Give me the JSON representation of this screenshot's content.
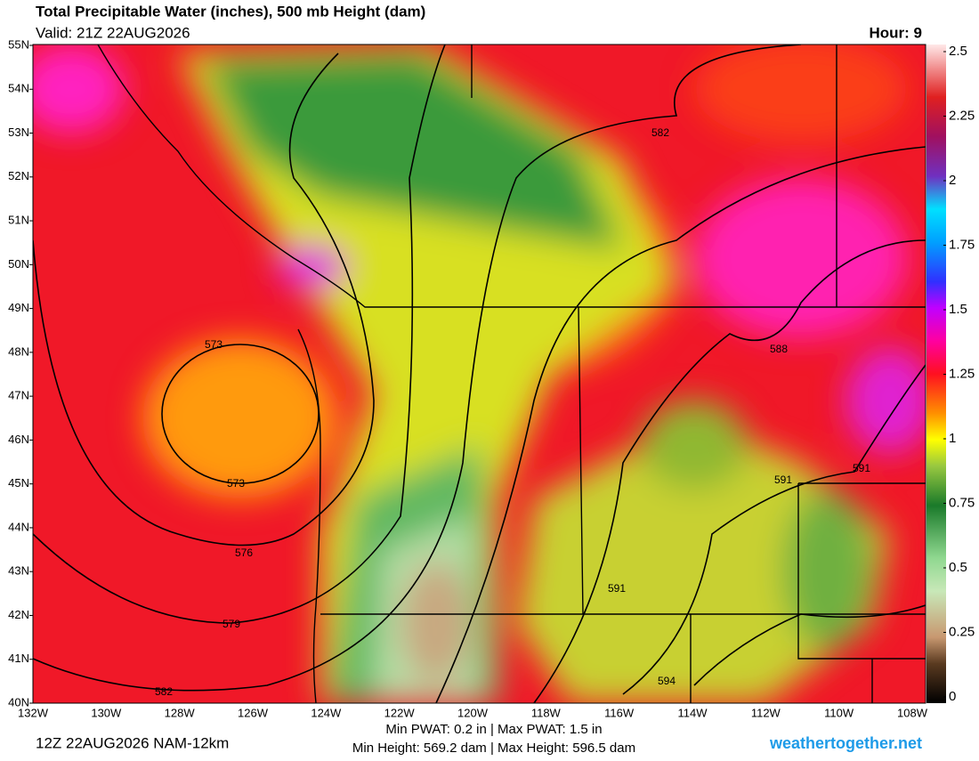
{
  "header": {
    "title": "Total Precipitable Water (inches), 500 mb Height (dam)",
    "valid": "Valid: 21Z 22AUG2026",
    "hour": "Hour: 9"
  },
  "map": {
    "lat_labels": [
      "55N",
      "54N",
      "53N",
      "52N",
      "51N",
      "50N",
      "49N",
      "48N",
      "47N",
      "46N",
      "45N",
      "44N",
      "43N",
      "42N",
      "41N",
      "40N"
    ],
    "lon_labels": [
      "132W",
      "130W",
      "128W",
      "126W",
      "124W",
      "122W",
      "120W",
      "118W",
      "116W",
      "114W",
      "112W",
      "110W",
      "108W"
    ],
    "contour_labels": [
      "573",
      "573",
      "576",
      "579",
      "582",
      "582",
      "588",
      "591",
      "591",
      "591",
      "594"
    ]
  },
  "colorbar": {
    "lim": [
      0,
      2.5
    ],
    "ticks": [
      0,
      0.25,
      0.5,
      0.75,
      1,
      1.25,
      1.5,
      1.75,
      2,
      2.25,
      2.5
    ]
  },
  "footer": {
    "run": "12Z 22AUG2026 NAM-12km",
    "pwat": "Min PWAT:   0.2 in | Max PWAT:   1.5 in",
    "height": "Min Height: 569.2 dam | Max Height: 596.5 dam",
    "site": "weathertogether.net"
  }
}
